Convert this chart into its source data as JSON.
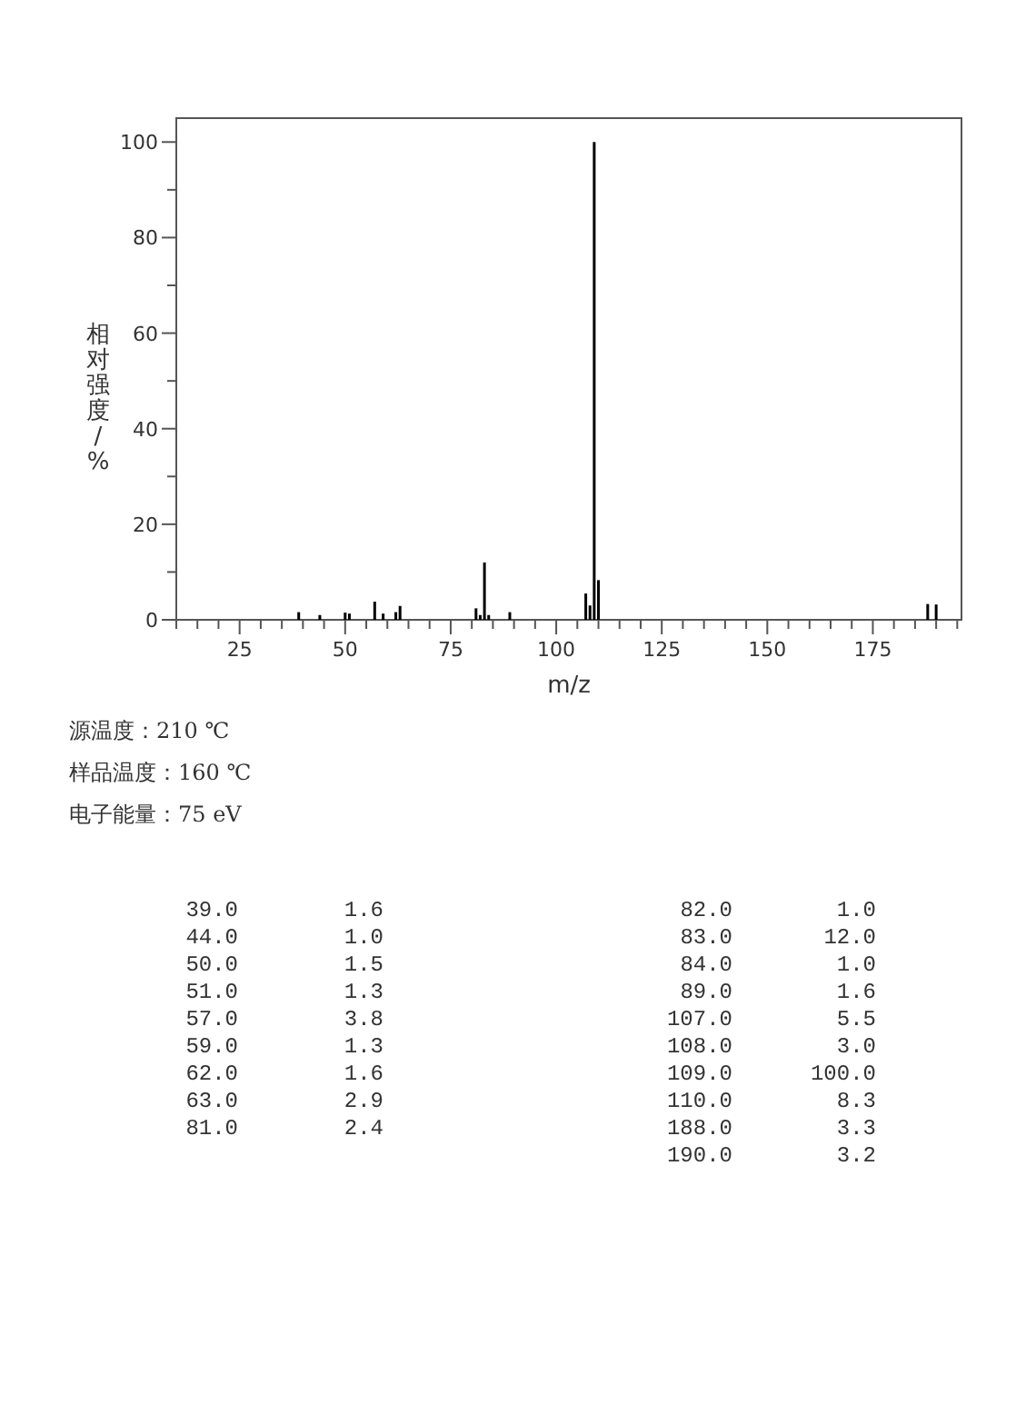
{
  "chart_data": {
    "type": "bar",
    "xlabel": "m/z",
    "ylabel": "相对强度/%",
    "x": [
      39,
      44,
      50,
      51,
      57,
      59,
      62,
      63,
      81,
      82,
      83,
      84,
      89,
      107,
      108,
      109,
      110,
      188,
      190
    ],
    "values": [
      1.6,
      1.0,
      1.5,
      1.3,
      3.8,
      1.3,
      1.6,
      2.9,
      2.4,
      1.0,
      12.0,
      1.0,
      1.6,
      5.5,
      3.0,
      100.0,
      8.3,
      3.3,
      3.2
    ],
    "color": "#000000",
    "xlim": [
      10,
      196
    ],
    "xticks": [
      {
        "value": 10,
        "label": null
      },
      {
        "value": 15,
        "label": null
      },
      {
        "value": 20,
        "label": null
      },
      25,
      {
        "value": 30,
        "label": null
      },
      {
        "value": 35,
        "label": null
      },
      {
        "value": 40,
        "label": null
      },
      {
        "value": 45,
        "label": null
      },
      50,
      {
        "value": 55,
        "label": null
      },
      {
        "value": 60,
        "label": null
      },
      {
        "value": 65,
        "label": null
      },
      {
        "value": 70,
        "label": null
      },
      75,
      {
        "value": 80,
        "label": null
      },
      {
        "value": 85,
        "label": null
      },
      {
        "value": 90,
        "label": null
      },
      {
        "value": 95,
        "label": null
      },
      100,
      {
        "value": 105,
        "label": null
      },
      {
        "value": 110,
        "label": null
      },
      {
        "value": 115,
        "label": null
      },
      {
        "value": 120,
        "label": null
      },
      125,
      {
        "value": 130,
        "label": null
      },
      {
        "value": 135,
        "label": null
      },
      {
        "value": 140,
        "label": null
      },
      {
        "value": 145,
        "label": null
      },
      150,
      {
        "value": 155,
        "label": null
      },
      {
        "value": 160,
        "label": null
      },
      {
        "value": 165,
        "label": null
      },
      {
        "value": 170,
        "label": null
      },
      175,
      {
        "value": 180,
        "label": null
      },
      {
        "value": 185,
        "label": null
      },
      {
        "value": 190,
        "label": null
      },
      {
        "value": 195,
        "label": null
      }
    ],
    "ylim": [
      0,
      105
    ],
    "yticks": [
      0,
      {
        "value": 10,
        "label": null
      },
      20,
      {
        "value": 30,
        "label": null
      },
      40,
      {
        "value": 50,
        "label": null
      },
      60,
      {
        "value": 70,
        "label": null
      },
      80,
      {
        "value": 90,
        "label": null
      },
      100
    ],
    "grid": false,
    "annotations": [
      "源温度：210 ℃",
      "样品温度：160 ℃",
      "电子能量：75 eV",
      "39.0",
      "1.6",
      "44.0",
      "1.0",
      "50.0",
      "1.5",
      "51.0",
      "1.3",
      "57.0",
      "3.8",
      "59.0",
      "1.3",
      "62.0",
      "1.6",
      "63.0",
      "2.9",
      "81.0",
      "2.4",
      "82.0",
      "1.0",
      "83.0",
      "12.0",
      "84.0",
      "1.0",
      "89.0",
      "1.6",
      "107.0",
      "5.5",
      "108.0",
      "3.0",
      "109.0",
      "100.0",
      "110.0",
      "8.3",
      "188.0",
      "3.3",
      "190.0",
      "3.2"
    ]
  }
}
